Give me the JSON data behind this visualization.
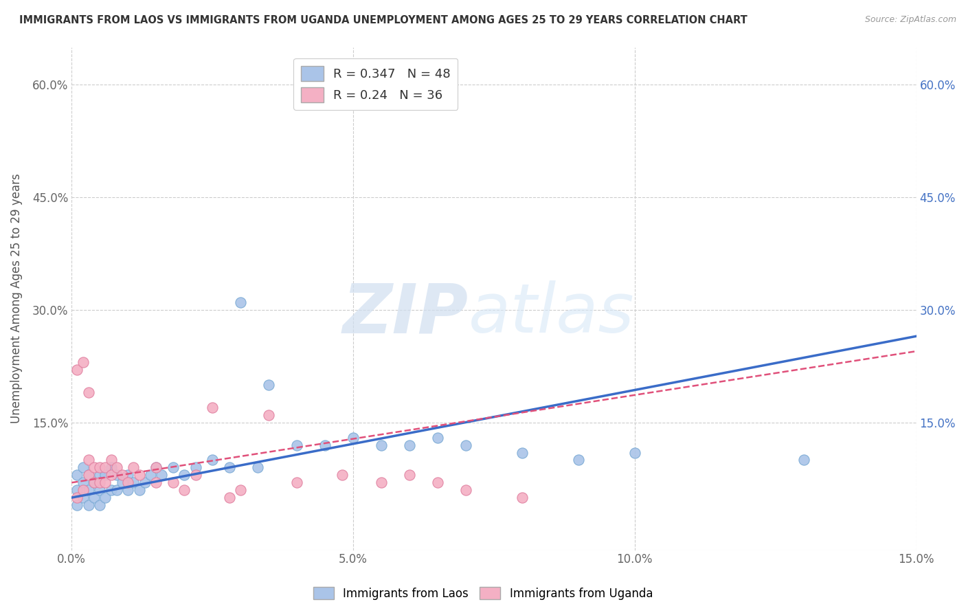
{
  "title": "IMMIGRANTS FROM LAOS VS IMMIGRANTS FROM UGANDA UNEMPLOYMENT AMONG AGES 25 TO 29 YEARS CORRELATION CHART",
  "source": "Source: ZipAtlas.com",
  "ylabel": "Unemployment Among Ages 25 to 29 years",
  "xlim": [
    0.0,
    0.15
  ],
  "ylim": [
    -0.02,
    0.65
  ],
  "xticks": [
    0.0,
    0.05,
    0.1,
    0.15
  ],
  "xticklabels": [
    "0.0%",
    "5.0%",
    "10.0%",
    "15.0%"
  ],
  "left_yticks": [
    0.15,
    0.3,
    0.45,
    0.6
  ],
  "left_yticklabels": [
    "15.0%",
    "30.0%",
    "45.0%",
    "60.0%"
  ],
  "right_yticks": [
    0.15,
    0.3,
    0.45,
    0.6
  ],
  "right_yticklabels": [
    "15.0%",
    "30.0%",
    "45.0%",
    "60.0%"
  ],
  "laos_color": "#aac4e8",
  "laos_edge": "#7aaad4",
  "laos_line_color": "#3a6cc8",
  "uganda_color": "#f4b0c4",
  "uganda_edge": "#e080a0",
  "uganda_line_color": "#e0507a",
  "laos_R": 0.347,
  "laos_N": 48,
  "uganda_R": 0.24,
  "uganda_N": 36,
  "legend_label_laos": "Immigrants from Laos",
  "legend_label_uganda": "Immigrants from Uganda",
  "watermark_zip": "ZIP",
  "watermark_atlas": "atlas",
  "background_color": "#ffffff",
  "grid_color": "#cccccc",
  "laos_x": [
    0.001,
    0.001,
    0.001,
    0.002,
    0.002,
    0.002,
    0.003,
    0.003,
    0.003,
    0.004,
    0.004,
    0.005,
    0.005,
    0.005,
    0.006,
    0.006,
    0.007,
    0.007,
    0.008,
    0.008,
    0.009,
    0.01,
    0.01,
    0.011,
    0.012,
    0.013,
    0.014,
    0.015,
    0.016,
    0.018,
    0.02,
    0.022,
    0.025,
    0.028,
    0.03,
    0.033,
    0.035,
    0.04,
    0.045,
    0.05,
    0.055,
    0.06,
    0.065,
    0.07,
    0.08,
    0.09,
    0.1,
    0.13
  ],
  "laos_y": [
    0.04,
    0.06,
    0.08,
    0.05,
    0.07,
    0.09,
    0.04,
    0.06,
    0.08,
    0.05,
    0.07,
    0.04,
    0.06,
    0.08,
    0.05,
    0.08,
    0.06,
    0.09,
    0.06,
    0.08,
    0.07,
    0.06,
    0.08,
    0.07,
    0.06,
    0.07,
    0.08,
    0.09,
    0.08,
    0.09,
    0.08,
    0.09,
    0.1,
    0.09,
    0.31,
    0.09,
    0.2,
    0.12,
    0.12,
    0.13,
    0.12,
    0.12,
    0.13,
    0.12,
    0.11,
    0.1,
    0.11,
    0.1
  ],
  "uganda_x": [
    0.001,
    0.001,
    0.002,
    0.002,
    0.003,
    0.003,
    0.003,
    0.004,
    0.004,
    0.005,
    0.005,
    0.006,
    0.006,
    0.007,
    0.007,
    0.008,
    0.009,
    0.01,
    0.011,
    0.012,
    0.015,
    0.015,
    0.018,
    0.02,
    0.022,
    0.025,
    0.028,
    0.03,
    0.035,
    0.04,
    0.048,
    0.055,
    0.06,
    0.065,
    0.07,
    0.08
  ],
  "uganda_y": [
    0.05,
    0.22,
    0.23,
    0.06,
    0.19,
    0.08,
    0.1,
    0.07,
    0.09,
    0.07,
    0.09,
    0.07,
    0.09,
    0.08,
    0.1,
    0.09,
    0.08,
    0.07,
    0.09,
    0.08,
    0.07,
    0.09,
    0.07,
    0.06,
    0.08,
    0.17,
    0.05,
    0.06,
    0.16,
    0.07,
    0.08,
    0.07,
    0.08,
    0.07,
    0.06,
    0.05
  ],
  "laos_trend": [
    0.05,
    0.265
  ],
  "uganda_trend": [
    0.07,
    0.245
  ]
}
